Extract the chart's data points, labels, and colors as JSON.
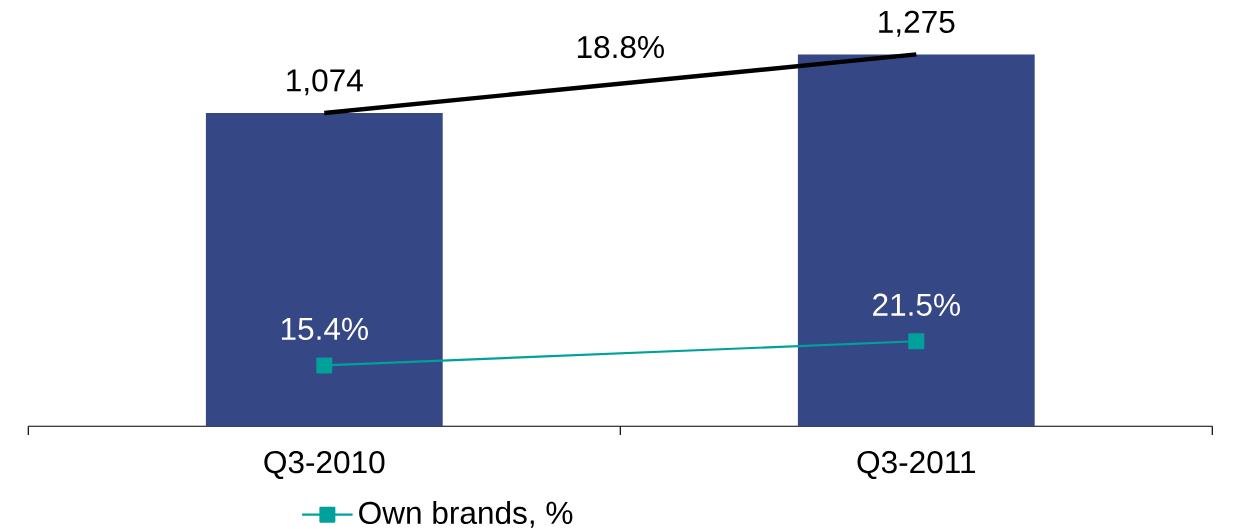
{
  "chart_data": {
    "type": "bar",
    "categories": [
      "Q3-2010",
      "Q3-2011"
    ],
    "series": [
      {
        "color": "#364785",
        "values": [
          1074,
          1275
        ],
        "value_labels": [
          "1,074",
          "1,275"
        ]
      },
      {
        "type": "line",
        "color": "#000000",
        "values": [
          1074,
          1275
        ]
      },
      {
        "type": "line",
        "name": "Own brands, %",
        "color": "#00A19A",
        "axis": "y2",
        "marker": "square",
        "values": [
          15.4,
          21.5
        ],
        "value_labels": [
          "15.4%",
          "21.5%"
        ]
      }
    ],
    "annotations": [
      "18.8%"
    ],
    "tick_labels": "x",
    "legend": "bottom"
  }
}
